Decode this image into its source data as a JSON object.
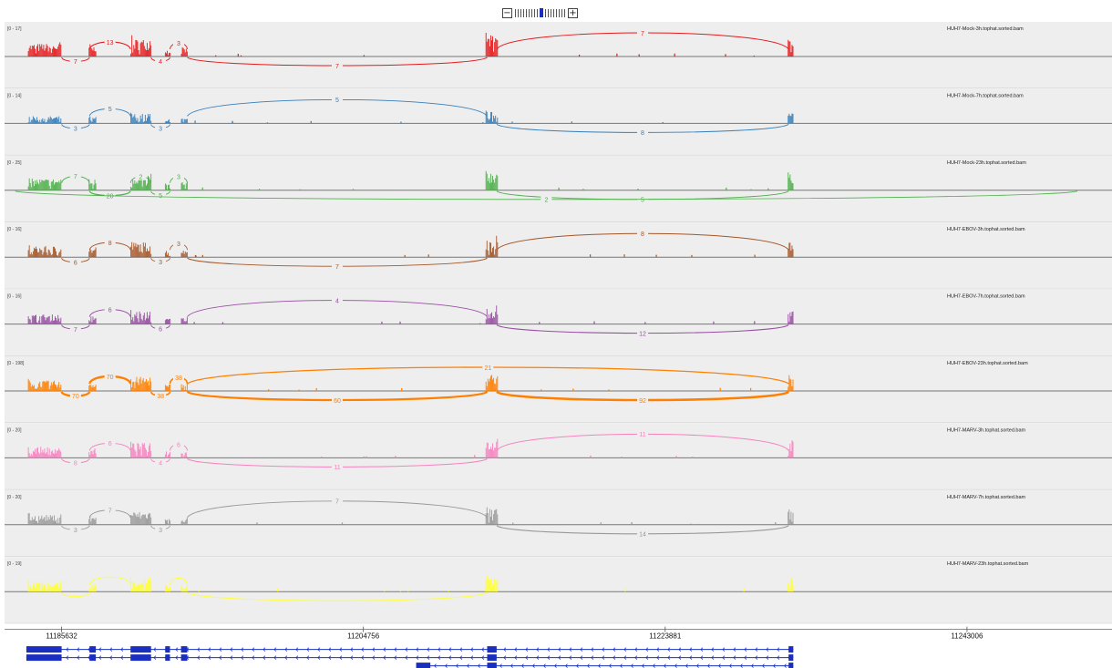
{
  "zoom": {
    "minus_label": "−",
    "plus_label": "+",
    "levels": 18,
    "current_level": 9
  },
  "chart_data": {
    "type": "sashimi",
    "x_axis": {
      "range": [
        11183000,
        11250000
      ],
      "ticks": [
        11185632,
        11204756,
        11223881,
        11243006
      ],
      "tick_labels": [
        "11185632",
        "11204756",
        "11223881",
        "11243006"
      ]
    },
    "exons": [
      [
        11183400,
        11185632
      ],
      [
        11187400,
        11187800
      ],
      [
        11190000,
        11191300
      ],
      [
        11192200,
        11192500
      ],
      [
        11193200,
        11193600
      ],
      [
        11212600,
        11213200
      ],
      [
        11231700,
        11232000
      ]
    ],
    "tracks": [
      {
        "name": "HUH7-Mock-3h.tophat.sorted.bam",
        "range": "[0 - 17]",
        "color": "#e41a1c",
        "junctions": [
          {
            "from": 11187400,
            "to": 11190000,
            "count": "13",
            "side": "up"
          },
          {
            "from": 11191300,
            "to": 11192500,
            "count": "4",
            "side": "down"
          },
          {
            "from": 11192500,
            "to": 11193600,
            "count": "3",
            "side": "up"
          },
          {
            "from": 11185632,
            "to": 11187400,
            "count": "7",
            "side": "down"
          },
          {
            "from": 11193600,
            "to": 11212600,
            "count": "7",
            "side": "down"
          },
          {
            "from": 11213200,
            "to": 11231700,
            "count": "7",
            "side": "up"
          }
        ]
      },
      {
        "name": "HUH7-Mock-7h.tophat.sorted.bam",
        "range": "[0 - 14]",
        "color": "#377eb8",
        "junctions": [
          {
            "from": 11187400,
            "to": 11190000,
            "count": "5",
            "side": "up"
          },
          {
            "from": 11185632,
            "to": 11187400,
            "count": "3",
            "side": "down"
          },
          {
            "from": 11191300,
            "to": 11192500,
            "count": "3",
            "side": "down"
          },
          {
            "from": 11193600,
            "to": 11212600,
            "count": "5",
            "side": "up"
          },
          {
            "from": 11213200,
            "to": 11231700,
            "count": "8",
            "side": "down"
          }
        ]
      },
      {
        "name": "HUH7-Mock-23h.tophat.sorted.bam",
        "range": "[0 - 25]",
        "color": "#4daf4a",
        "junctions": [
          {
            "from": 11185632,
            "to": 11187400,
            "count": "7",
            "side": "up"
          },
          {
            "from": 11187400,
            "to": 11190000,
            "count": "20",
            "side": "down"
          },
          {
            "from": 11190000,
            "to": 11191300,
            "count": "2",
            "side": "up"
          },
          {
            "from": 11191300,
            "to": 11192500,
            "count": "5",
            "side": "down"
          },
          {
            "from": 11192500,
            "to": 11193600,
            "count": "3",
            "side": "up"
          },
          {
            "from": 11213200,
            "to": 11231700,
            "count": "5",
            "side": "down"
          },
          {
            "from": 11182700,
            "to": 11250000,
            "count": "2",
            "side": "down"
          }
        ]
      },
      {
        "name": "HUH7-EBOV-3h.tophat.sorted.bam",
        "range": "[0 - 16]",
        "color": "#a65628",
        "junctions": [
          {
            "from": 11187400,
            "to": 11190000,
            "count": "8",
            "side": "up"
          },
          {
            "from": 11185632,
            "to": 11187400,
            "count": "6",
            "side": "down"
          },
          {
            "from": 11191300,
            "to": 11192500,
            "count": "3",
            "side": "down"
          },
          {
            "from": 11192500,
            "to": 11193600,
            "count": "3",
            "side": "up"
          },
          {
            "from": 11193600,
            "to": 11212600,
            "count": "7",
            "side": "down"
          },
          {
            "from": 11213200,
            "to": 11231700,
            "count": "8",
            "side": "up"
          }
        ]
      },
      {
        "name": "HUH7-EBOV-7h.tophat.sorted.bam",
        "range": "[0 - 16]",
        "color": "#984ea3",
        "junctions": [
          {
            "from": 11187400,
            "to": 11190000,
            "count": "6",
            "side": "up"
          },
          {
            "from": 11185632,
            "to": 11187400,
            "count": "7",
            "side": "down"
          },
          {
            "from": 11191300,
            "to": 11192500,
            "count": "6",
            "side": "down"
          },
          {
            "from": 11193600,
            "to": 11212600,
            "count": "4",
            "side": "up"
          },
          {
            "from": 11213200,
            "to": 11231700,
            "count": "12",
            "side": "down"
          }
        ]
      },
      {
        "name": "HUH7-EBOV-23h.tophat.sorted.bam",
        "range": "[0 - 198]",
        "color": "#ff7f00",
        "junctions": [
          {
            "from": 11187400,
            "to": 11190000,
            "count": "70",
            "side": "up"
          },
          {
            "from": 11185632,
            "to": 11187400,
            "count": "70",
            "side": "down"
          },
          {
            "from": 11191300,
            "to": 11192500,
            "count": "38",
            "side": "down"
          },
          {
            "from": 11192500,
            "to": 11193600,
            "count": "38",
            "side": "up"
          },
          {
            "from": 11193600,
            "to": 11212600,
            "count": "60",
            "side": "down"
          },
          {
            "from": 11213200,
            "to": 11231700,
            "count": "92",
            "side": "down"
          },
          {
            "from": 11193600,
            "to": 11231700,
            "count": "21",
            "side": "up"
          }
        ]
      },
      {
        "name": "HUH7-MARV-3h.tophat.sorted.bam",
        "range": "[0 - 20]",
        "color": "#f781bf",
        "junctions": [
          {
            "from": 11187400,
            "to": 11190000,
            "count": "6",
            "side": "up"
          },
          {
            "from": 11185632,
            "to": 11187400,
            "count": "8",
            "side": "down"
          },
          {
            "from": 11191300,
            "to": 11192500,
            "count": "4",
            "side": "down"
          },
          {
            "from": 11192500,
            "to": 11193600,
            "count": "6",
            "side": "up"
          },
          {
            "from": 11193600,
            "to": 11212600,
            "count": "11",
            "side": "down"
          },
          {
            "from": 11213200,
            "to": 11231700,
            "count": "11",
            "side": "up"
          }
        ]
      },
      {
        "name": "HUH7-MARV-7h.tophat.sorted.bam",
        "range": "[0 - 20]",
        "color": "#999999",
        "junctions": [
          {
            "from": 11187400,
            "to": 11190000,
            "count": "7",
            "side": "up"
          },
          {
            "from": 11185632,
            "to": 11187400,
            "count": "3",
            "side": "down"
          },
          {
            "from": 11191300,
            "to": 11192500,
            "count": "3",
            "side": "down"
          },
          {
            "from": 11193600,
            "to": 11212600,
            "count": "7",
            "side": "up"
          },
          {
            "from": 11213200,
            "to": 11231700,
            "count": "14",
            "side": "down"
          }
        ]
      },
      {
        "name": "HUH7-MARV-23h.tophat.sorted.bam",
        "range": "[0 - 19]",
        "color": "#ffff33",
        "junctions": [
          {
            "from": 11185632,
            "to": 11187400,
            "count": "",
            "side": "down"
          },
          {
            "from": 11187400,
            "to": 11190000,
            "count": "",
            "side": "up"
          },
          {
            "from": 11192500,
            "to": 11193600,
            "count": "",
            "side": "up"
          },
          {
            "from": 11193600,
            "to": 11212600,
            "count": "",
            "side": "down"
          }
        ]
      }
    ]
  }
}
